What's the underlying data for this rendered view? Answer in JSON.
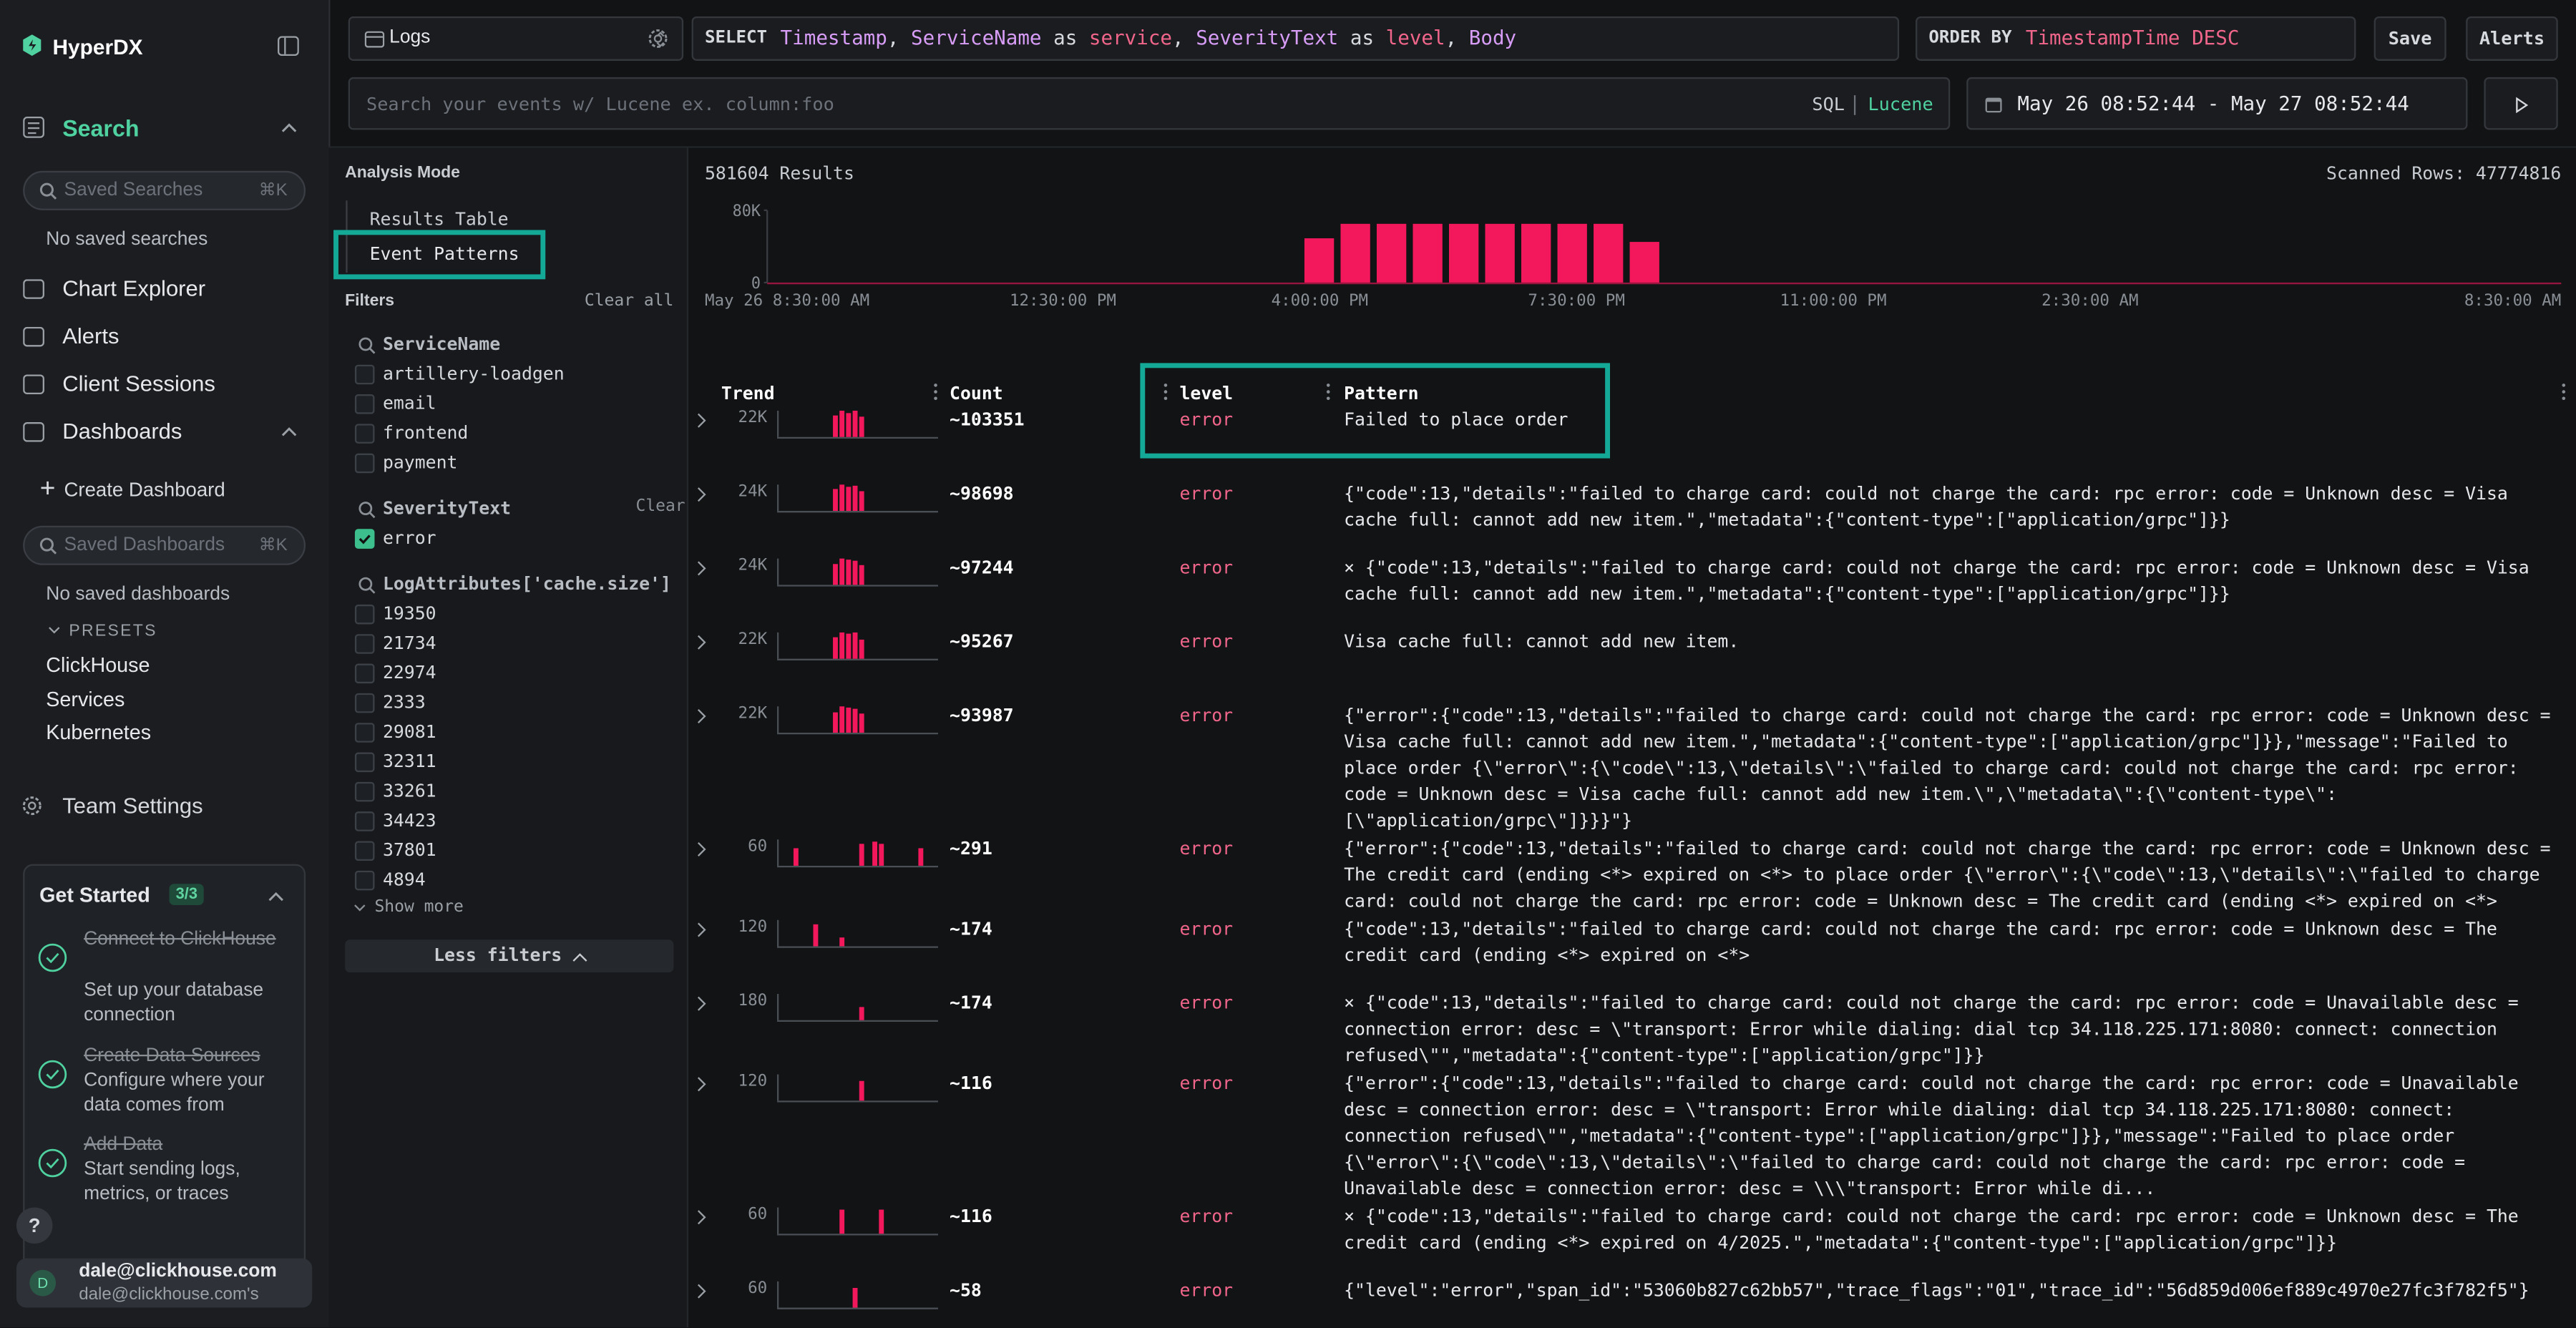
{
  "sidebar": {
    "logo": "HyperDX",
    "search": "Search",
    "saved_searches_placeholder": "Saved Searches",
    "saved_searches_shortcut": "⌘K",
    "no_saved_searches": "No saved searches",
    "nav": [
      "Chart Explorer",
      "Alerts",
      "Client Sessions",
      "Dashboards"
    ],
    "create_dashboard": "Create Dashboard",
    "saved_dashboards_placeholder": "Saved Dashboards",
    "saved_dashboards_shortcut": "⌘K",
    "no_saved_dashboards": "No saved dashboards",
    "presets_label": "PRESETS",
    "presets": [
      "ClickHouse",
      "Services",
      "Kubernetes"
    ],
    "team_settings": "Team Settings",
    "get_started": {
      "title": "Get Started",
      "badge": "3/3",
      "steps": [
        {
          "title": "Connect to ClickHouse",
          "desc": "Set up your database connection"
        },
        {
          "title": "Create Data Sources",
          "desc": "Configure where your data comes from"
        },
        {
          "title": "Add Data",
          "desc": "Start sending logs, metrics, or traces"
        }
      ]
    },
    "help": "?",
    "user": {
      "avatar": "D",
      "name": "dale@clickhouse.com",
      "team": "dale@clickhouse.com's"
    }
  },
  "toolbar": {
    "source": "Logs",
    "select_keyword": "SELECT",
    "select_tokens": [
      "Timestamp",
      ", ",
      "ServiceName",
      " as ",
      "service",
      ", ",
      "SeverityText",
      " as ",
      "level",
      ", ",
      "Body"
    ],
    "order_keyword": "ORDER BY",
    "order_value": "TimestampTime DESC",
    "save": "Save",
    "alerts": "Alerts",
    "search_placeholder": "Search your events w/ Lucene ex. column:foo",
    "sql": "SQL",
    "lucene": "Lucene",
    "date_range": "May 26 08:52:44 - May 27 08:52:44"
  },
  "analysis": {
    "title": "Analysis Mode",
    "modes": [
      "Results Table",
      "Event Patterns"
    ]
  },
  "filters": {
    "title": "Filters",
    "clear_all": "Clear all",
    "groups": [
      {
        "name": "ServiceName",
        "values": [
          "artillery-loadgen",
          "email",
          "frontend",
          "payment"
        ]
      },
      {
        "name": "SeverityText",
        "clear": "Clear",
        "values": [
          "error"
        ],
        "checked": [
          true
        ]
      },
      {
        "name": "LogAttributes['cache.size']",
        "values": [
          "19350",
          "21734",
          "22974",
          "2333",
          "29081",
          "32311",
          "33261",
          "34423",
          "37801",
          "4894"
        ]
      }
    ],
    "show_more": "Show more",
    "less_filters": "Less filters"
  },
  "results": {
    "count": "581604 Results",
    "scanned": "Scanned Rows: 47774816"
  },
  "histogram": {
    "color": "#f2185b",
    "values": [
      49000,
      65000,
      65000,
      65000,
      65000,
      65000,
      65000,
      65000,
      65000,
      45000
    ],
    "ylim": [
      0,
      80000
    ],
    "yticks": [
      0,
      {
        "value": 80000,
        "label": "80K"
      }
    ],
    "x_labels": [
      "May 26 8:30:00 AM",
      "12:30:00 PM",
      "4:00:00 PM",
      "7:30:00 PM",
      "11:00:00 PM",
      "2:30:00 AM",
      "8:30:00 AM"
    ]
  },
  "patterns": {
    "color": "#f2185b",
    "headers": [
      "Trend",
      "Count",
      "level",
      "Pattern"
    ],
    "rows": [
      {
        "trend_max": {
          "value": 22000,
          "label": "22K"
        },
        "trend": [
          0,
          0,
          0,
          0,
          0,
          0,
          0,
          0,
          18000,
          22000,
          20000,
          22000,
          17000,
          0,
          0,
          0,
          0,
          0,
          0,
          0,
          0,
          0,
          0,
          0
        ],
        "count": "~103351",
        "level": "error",
        "pattern": "Failed to place order"
      },
      {
        "trend_max": {
          "value": 24000,
          "label": "24K"
        },
        "trend": [
          0,
          0,
          0,
          0,
          0,
          0,
          0,
          0,
          20000,
          24000,
          22000,
          23000,
          18000,
          0,
          0,
          0,
          0,
          0,
          0,
          0,
          0,
          0,
          0,
          0
        ],
        "count": "~98698",
        "level": "error",
        "pattern": "{\"code\":13,\"details\":\"failed to charge card: could not charge the card: rpc error: code = Unknown desc = Visa cache full: cannot add new item.\",\"metadata\":{\"content-type\":[\"application/grpc\"]}}"
      },
      {
        "trend_max": {
          "value": 24000,
          "label": "24K"
        },
        "trend": [
          0,
          0,
          0,
          0,
          0,
          0,
          0,
          0,
          19000,
          24000,
          23000,
          22000,
          18000,
          0,
          0,
          0,
          0,
          0,
          0,
          0,
          0,
          0,
          0,
          0
        ],
        "count": "~97244",
        "level": "error",
        "pattern": "× {\"code\":13,\"details\":\"failed to charge card: could not charge the card: rpc error: code = Unknown desc = Visa cache full: cannot add new item.\",\"metadata\":{\"content-type\":[\"application/grpc\"]}}"
      },
      {
        "trend_max": {
          "value": 22000,
          "label": "22K"
        },
        "trend": [
          0,
          0,
          0,
          0,
          0,
          0,
          0,
          0,
          18000,
          22000,
          21000,
          22000,
          16000,
          0,
          0,
          0,
          0,
          0,
          0,
          0,
          0,
          0,
          0,
          0
        ],
        "count": "~95267",
        "level": "error",
        "pattern": "Visa cache full: cannot add new item."
      },
      {
        "trend_max": {
          "value": 22000,
          "label": "22K"
        },
        "trend": [
          0,
          0,
          0,
          0,
          0,
          0,
          0,
          0,
          17000,
          22000,
          21000,
          20000,
          16000,
          0,
          0,
          0,
          0,
          0,
          0,
          0,
          0,
          0,
          0,
          0
        ],
        "count": "~93987",
        "level": "error",
        "pattern": "{\"error\":{\"code\":13,\"details\":\"failed to charge card: could not charge the card: rpc error: code = Unknown desc = Visa cache full: cannot add new item.\",\"metadata\":{\"content-type\":[\"application/grpc\"]}},\"message\":\"Failed to place order {\\\"error\\\":{\\\"code\\\":13,\\\"details\\\":\\\"failed to charge card: could not charge the card: rpc error: code = Unknown desc = Visa cache full: cannot add new item.\\\",\\\"metadata\\\":{\\\"content-type\\\":[\\\"application/grpc\\\"]}}}\"}"
      },
      {
        "trend_max": 60,
        "trend": [
          0,
          0,
          40,
          0,
          0,
          0,
          0,
          0,
          0,
          0,
          0,
          0,
          50,
          0,
          55,
          50,
          0,
          0,
          0,
          0,
          0,
          40,
          0,
          0
        ],
        "count": "~291",
        "level": "error",
        "pattern": "{\"error\":{\"code\":13,\"details\":\"failed to charge card: could not charge the card: rpc error: code = Unknown desc = The credit card (ending <*> expired on <*> to place order {\\\"error\\\":{\\\"code\\\":13,\\\"details\\\":\\\"failed to charge card: could not charge the card: rpc error: code = Unknown desc = The credit card (ending <*> expired on <*>"
      },
      {
        "trend_max": 120,
        "trend": [
          0,
          0,
          0,
          0,
          0,
          100,
          0,
          0,
          0,
          40,
          0,
          0,
          0,
          0,
          0,
          0,
          0,
          0,
          0,
          0,
          0,
          0,
          0,
          0
        ],
        "count": "~174",
        "level": "error",
        "pattern": "{\"code\":13,\"details\":\"failed to charge card: could not charge the card: rpc error: code = Unknown desc = The credit card (ending <*> expired on <*>"
      },
      {
        "trend_max": 180,
        "trend": [
          0,
          0,
          0,
          0,
          0,
          0,
          0,
          0,
          0,
          0,
          0,
          0,
          90,
          0,
          0,
          0,
          0,
          0,
          0,
          0,
          0,
          0,
          0,
          0
        ],
        "count": "~174",
        "level": "error",
        "pattern": "× {\"code\":13,\"details\":\"failed to charge card: could not charge the card: rpc error: code = Unavailable desc = connection error: desc = \\\"transport: Error while dialing: dial tcp 34.118.225.171:8080: connect: connection refused\\\"\",\"metadata\":{\"content-type\":[\"application/grpc\"]}}"
      },
      {
        "trend_max": 120,
        "trend": [
          0,
          0,
          0,
          0,
          0,
          0,
          0,
          0,
          0,
          0,
          0,
          0,
          90,
          0,
          0,
          0,
          0,
          0,
          0,
          0,
          0,
          0,
          0,
          0
        ],
        "count": "~116",
        "level": "error",
        "pattern": "{\"error\":{\"code\":13,\"details\":\"failed to charge card: could not charge the card: rpc error: code = Unavailable desc = connection error: desc = \\\"transport: Error while dialing: dial tcp 34.118.225.171:8080: connect: connection refused\\\"\",\"metadata\":{\"content-type\":[\"application/grpc\"]}},\"message\":\"Failed to place order {\\\"error\\\":{\\\"code\\\":13,\\\"details\\\":\\\"failed to charge card: could not charge the card: rpc error: code = Unavailable desc = connection error: desc = \\\\\\\"transport: Error while di..."
      },
      {
        "trend_max": 60,
        "trend": [
          0,
          0,
          0,
          0,
          0,
          0,
          0,
          0,
          0,
          55,
          0,
          0,
          0,
          0,
          0,
          55,
          0,
          0,
          0,
          0,
          0,
          0,
          0,
          0
        ],
        "count": "~116",
        "level": "error",
        "pattern": "× {\"code\":13,\"details\":\"failed to charge card: could not charge the card: rpc error: code = Unknown desc = The credit card (ending <*> expired on 4/2025.\",\"metadata\":{\"content-type\":[\"application/grpc\"]}}"
      },
      {
        "trend_max": 60,
        "trend": [
          0,
          0,
          0,
          0,
          0,
          0,
          0,
          0,
          0,
          0,
          0,
          45,
          0,
          0,
          0,
          0,
          0,
          0,
          0,
          0,
          0,
          0,
          0,
          0
        ],
        "count": "~58",
        "level": "error",
        "pattern": "{\"level\":\"error\",\"span_id\":\"53060b827c62bb57\",\"trace_flags\":\"01\",\"trace_id\":\"56d859d006ef889c4970e27fc3f782f5\"}"
      }
    ]
  }
}
